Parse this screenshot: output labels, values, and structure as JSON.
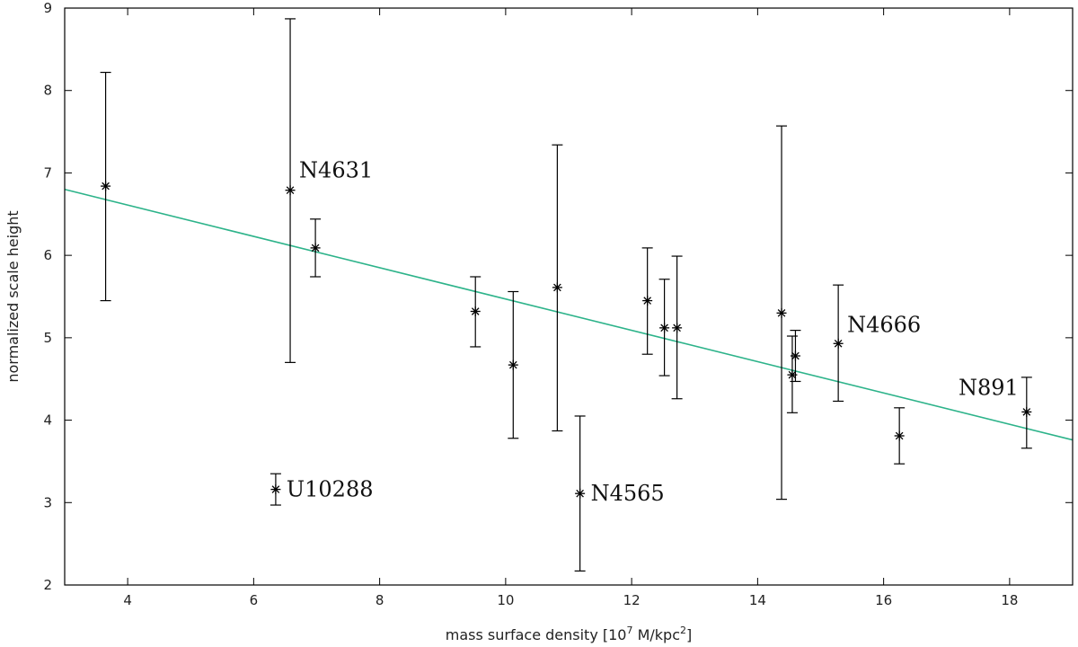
{
  "chart_data": {
    "type": "scatter",
    "title": "",
    "xlabel": {
      "prefix": "mass surface density [10",
      "sup1": "7",
      "middle": " M/kpc",
      "sup2": "2",
      "suffix": "]"
    },
    "ylabel": "normalized scale height",
    "xlim": [
      3,
      19
    ],
    "ylim": [
      2,
      9
    ],
    "xticks": [
      4,
      6,
      8,
      10,
      12,
      14,
      16,
      18
    ],
    "yticks": [
      2,
      3,
      4,
      5,
      6,
      7,
      8,
      9
    ],
    "grid": false,
    "legend": "none",
    "fit_line": {
      "color": "#2db38a",
      "points": [
        [
          3,
          6.8
        ],
        [
          19,
          3.76
        ]
      ]
    },
    "points": [
      {
        "x": 3.65,
        "y": 6.84,
        "ylow": 5.45,
        "yhigh": 8.22,
        "label": ""
      },
      {
        "x": 6.35,
        "y": 3.16,
        "ylow": 2.97,
        "yhigh": 3.35,
        "label": "U10288"
      },
      {
        "x": 6.58,
        "y": 6.79,
        "ylow": 4.7,
        "yhigh": 8.87,
        "label": "N4631"
      },
      {
        "x": 6.98,
        "y": 6.09,
        "ylow": 5.74,
        "yhigh": 6.44,
        "label": ""
      },
      {
        "x": 9.52,
        "y": 5.32,
        "ylow": 4.89,
        "yhigh": 5.74,
        "label": ""
      },
      {
        "x": 10.12,
        "y": 4.67,
        "ylow": 3.78,
        "yhigh": 5.56,
        "label": ""
      },
      {
        "x": 10.82,
        "y": 5.61,
        "ylow": 3.87,
        "yhigh": 7.34,
        "label": ""
      },
      {
        "x": 11.18,
        "y": 3.11,
        "ylow": 2.17,
        "yhigh": 4.05,
        "label": "N4565"
      },
      {
        "x": 12.25,
        "y": 5.45,
        "ylow": 4.8,
        "yhigh": 6.09,
        "label": ""
      },
      {
        "x": 12.52,
        "y": 5.12,
        "ylow": 4.54,
        "yhigh": 5.71,
        "label": ""
      },
      {
        "x": 12.72,
        "y": 5.12,
        "ylow": 4.26,
        "yhigh": 5.99,
        "label": ""
      },
      {
        "x": 14.38,
        "y": 5.3,
        "ylow": 3.04,
        "yhigh": 7.57,
        "label": ""
      },
      {
        "x": 14.55,
        "y": 4.55,
        "ylow": 4.09,
        "yhigh": 5.02,
        "label": ""
      },
      {
        "x": 14.6,
        "y": 4.78,
        "ylow": 4.47,
        "yhigh": 5.09,
        "label": ""
      },
      {
        "x": 15.28,
        "y": 4.93,
        "ylow": 4.23,
        "yhigh": 5.64,
        "label": "N4666"
      },
      {
        "x": 16.25,
        "y": 3.81,
        "ylow": 3.47,
        "yhigh": 4.15,
        "label": ""
      },
      {
        "x": 18.27,
        "y": 4.1,
        "ylow": 3.66,
        "yhigh": 4.52,
        "label": "N891"
      }
    ]
  }
}
